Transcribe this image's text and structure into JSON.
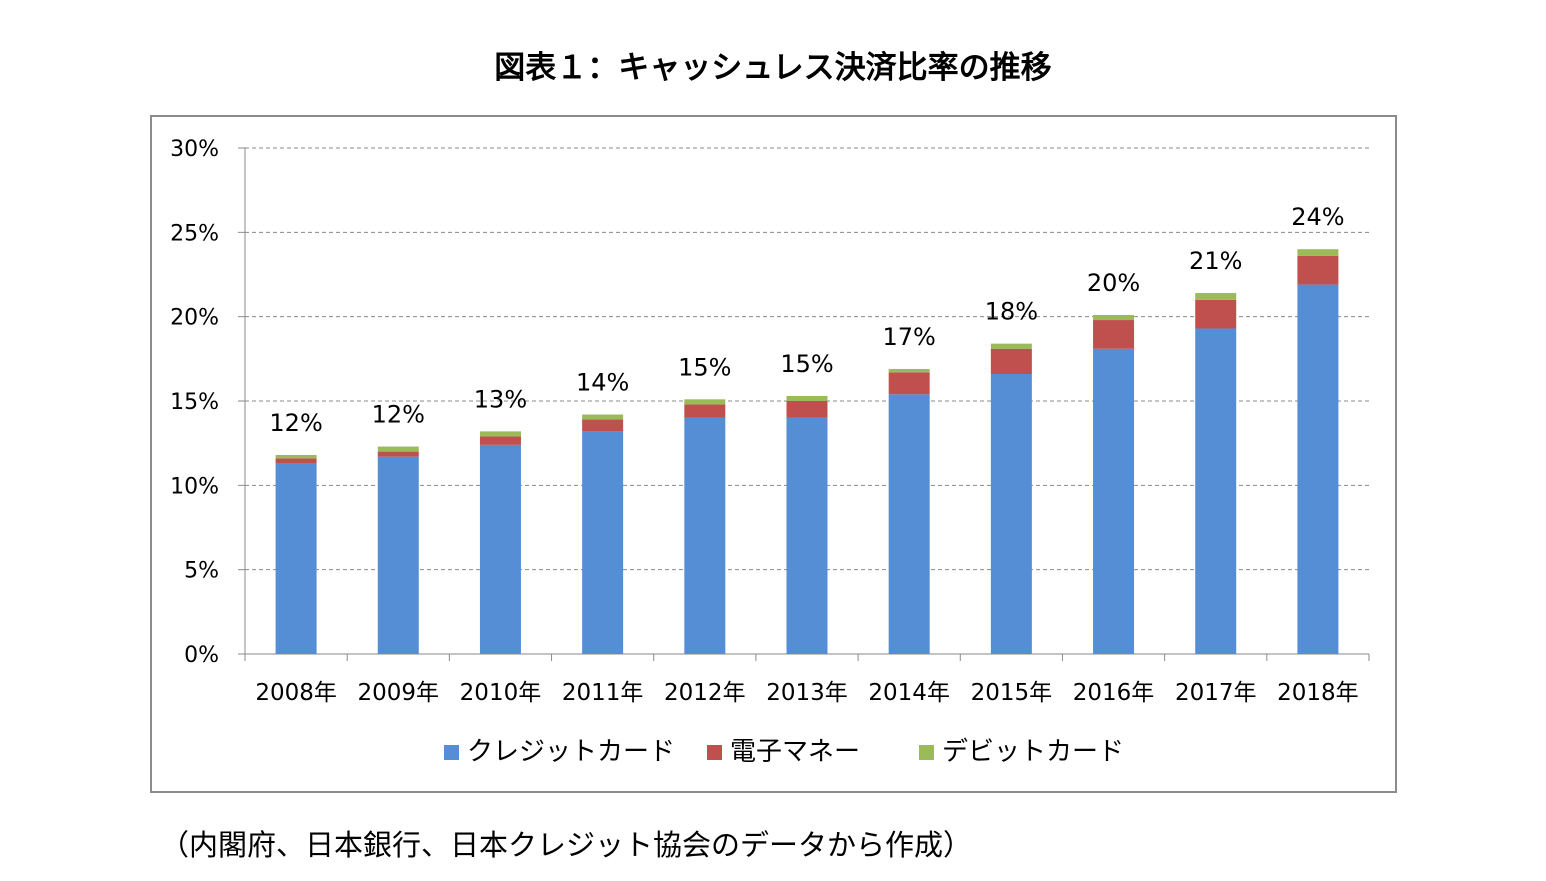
{
  "title": "図表１：キャッシュレス決済比率の推移",
  "source": "（内閣府、日本銀行、日本クレジット協会のデータから作成）",
  "chart_data": {
    "type": "bar",
    "stacked": true,
    "categories": [
      "2008年",
      "2009年",
      "2010年",
      "2011年",
      "2012年",
      "2013年",
      "2014年",
      "2015年",
      "2016年",
      "2017年",
      "2018年"
    ],
    "series": [
      {
        "name": "クレジットカード",
        "color": "#558ed5",
        "values": [
          11.3,
          11.7,
          12.4,
          13.2,
          14.0,
          14.0,
          15.4,
          16.6,
          18.1,
          19.3,
          21.9
        ]
      },
      {
        "name": "電子マネー",
        "color": "#c0504d",
        "values": [
          0.3,
          0.3,
          0.5,
          0.7,
          0.8,
          1.0,
          1.3,
          1.5,
          1.7,
          1.7,
          1.7
        ]
      },
      {
        "name": "デビットカード",
        "color": "#9bbb59",
        "values": [
          0.2,
          0.3,
          0.3,
          0.3,
          0.3,
          0.3,
          0.2,
          0.3,
          0.3,
          0.4,
          0.4
        ]
      }
    ],
    "data_labels": [
      "12%",
      "12%",
      "13%",
      "14%",
      "15%",
      "15%",
      "17%",
      "18%",
      "20%",
      "21%",
      "24%"
    ],
    "yticks": [
      "0%",
      "5%",
      "10%",
      "15%",
      "20%",
      "25%",
      "30%"
    ],
    "ylim": [
      0,
      30
    ],
    "grid": true,
    "legend": "bottom"
  }
}
